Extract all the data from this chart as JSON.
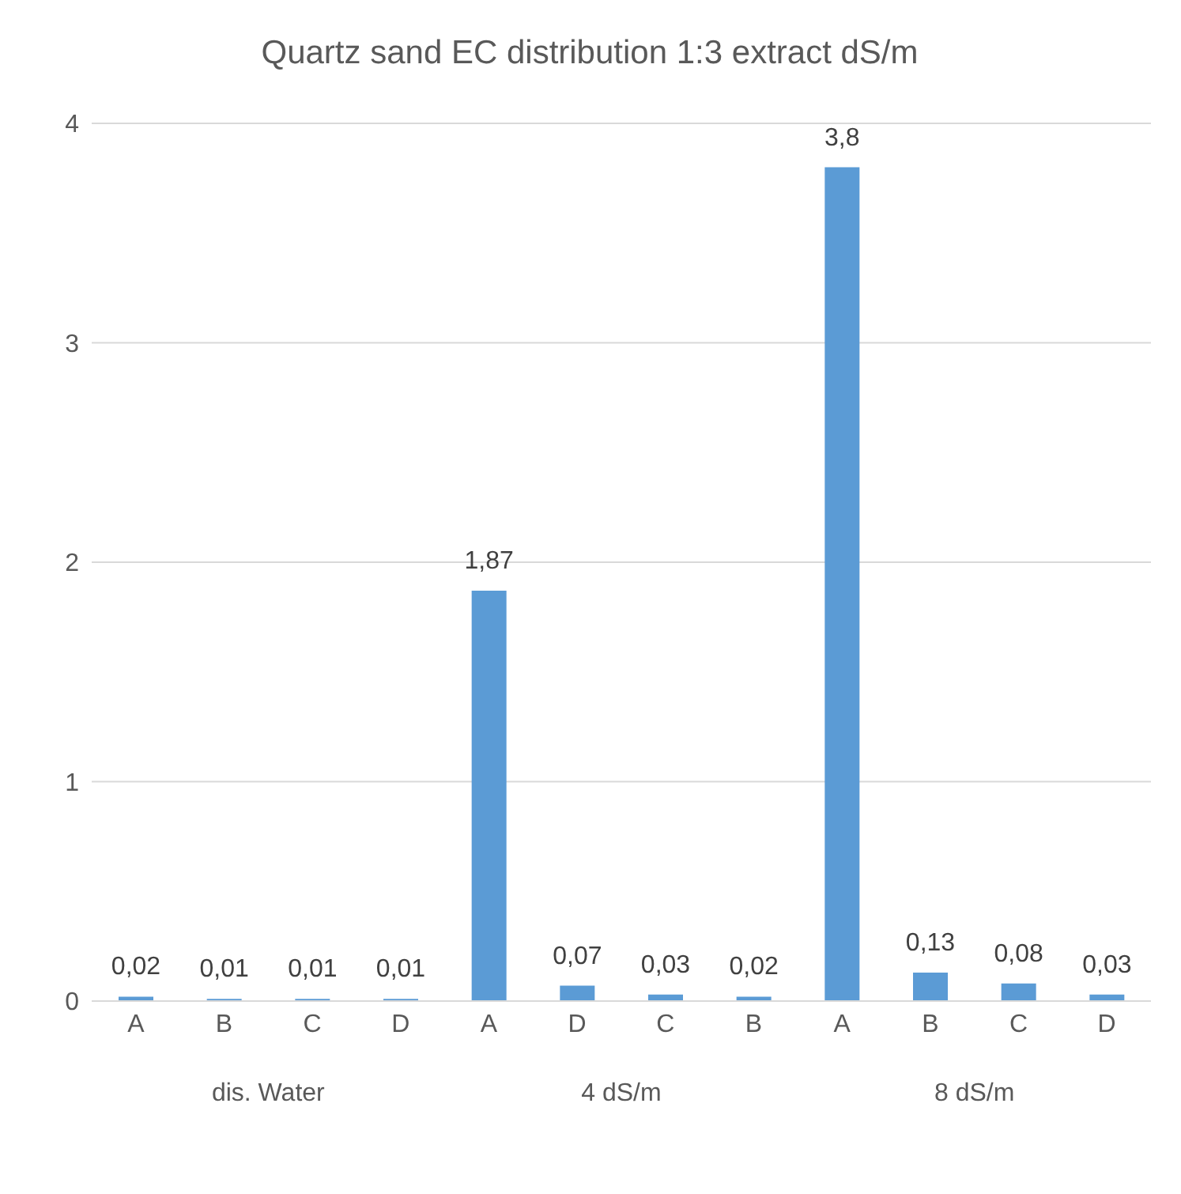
{
  "chart_data": {
    "type": "bar",
    "title": "Quartz sand EC distribution 1:3 extract dS/m",
    "categories": [
      "A",
      "B",
      "C",
      "D",
      "A",
      "D",
      "C",
      "B",
      "A",
      "B",
      "C",
      "D"
    ],
    "values": [
      0.02,
      0.01,
      0.01,
      0.01,
      1.87,
      0.07,
      0.03,
      0.02,
      3.8,
      0.13,
      0.08,
      0.03
    ],
    "value_labels": [
      "0,02",
      "0,01",
      "0,01",
      "0,01",
      "1,87",
      "0,07",
      "0,03",
      "0,02",
      "3,8",
      "0,13",
      "0,08",
      "0,03"
    ],
    "color": "#5b9bd5",
    "ylim": [
      0,
      4
    ],
    "yticks": [
      0,
      1,
      2,
      3,
      4
    ],
    "grid": "y",
    "annotations": [
      "dis. Water",
      "4 dS/m",
      "8 dS/m"
    ]
  }
}
